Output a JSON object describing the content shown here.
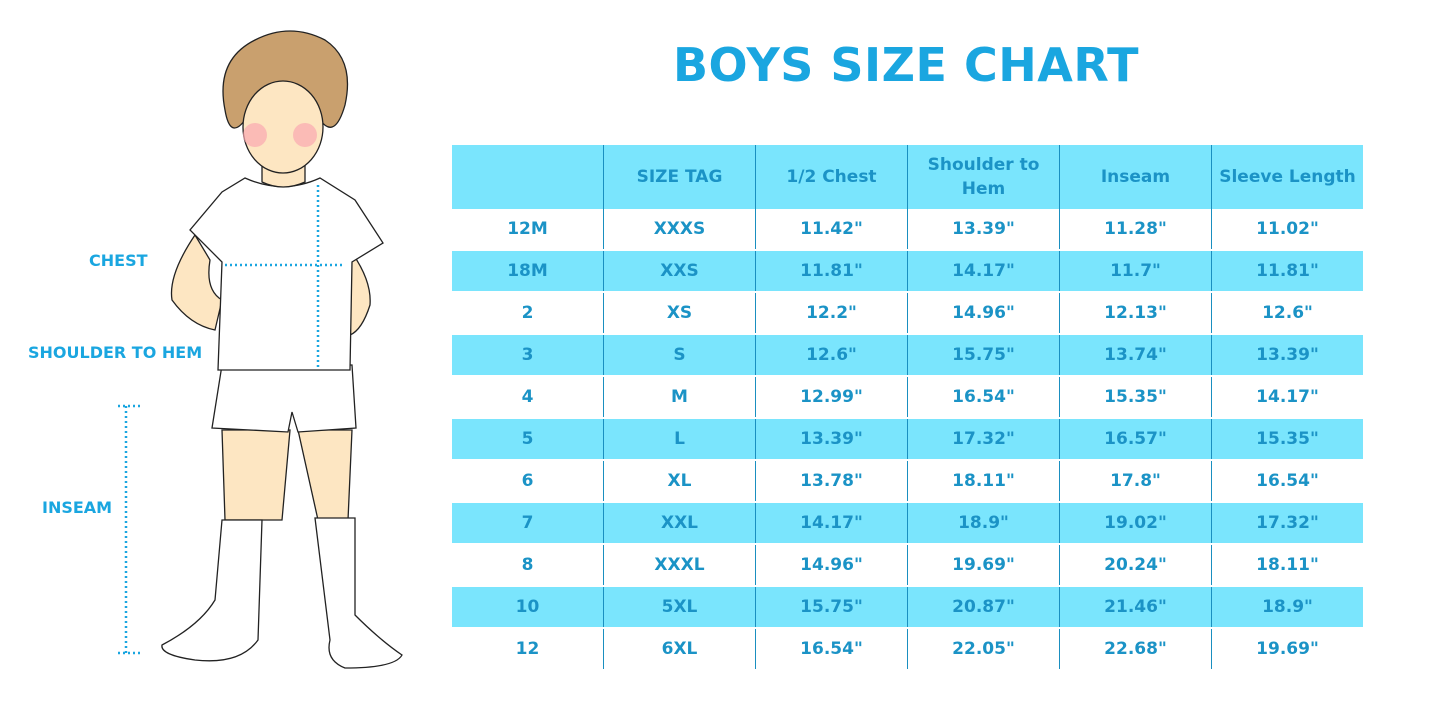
{
  "title": "BOYS SIZE CHART",
  "labels": {
    "chest": "CHEST",
    "shoulder_to_hem": "SHOULDER TO HEM",
    "inseam": "INSEAM"
  },
  "colors": {
    "accent": "#1aa6e0",
    "row_highlight": "#7ae5fd",
    "text": "#1b93c6",
    "divider": "#1a8fc0"
  },
  "table": {
    "headers": [
      "",
      "SIZE TAG",
      "1/2 Chest",
      "Shoulder to Hem",
      "Inseam",
      "Sleeve Length"
    ],
    "rows": [
      [
        "12M",
        "XXXS",
        "11.42\"",
        "13.39\"",
        "11.28\"",
        "11.02\""
      ],
      [
        "18M",
        "XXS",
        "11.81\"",
        "14.17\"",
        "11.7\"",
        "11.81\""
      ],
      [
        "2",
        "XS",
        "12.2\"",
        "14.96\"",
        "12.13\"",
        "12.6\""
      ],
      [
        "3",
        "S",
        "12.6\"",
        "15.75\"",
        "13.74\"",
        "13.39\""
      ],
      [
        "4",
        "M",
        "12.99\"",
        "16.54\"",
        "15.35\"",
        "14.17\""
      ],
      [
        "5",
        "L",
        "13.39\"",
        "17.32\"",
        "16.57\"",
        "15.35\""
      ],
      [
        "6",
        "XL",
        "13.78\"",
        "18.11\"",
        "17.8\"",
        "16.54\""
      ],
      [
        "7",
        "XXL",
        "14.17\"",
        "18.9\"",
        "19.02\"",
        "17.32\""
      ],
      [
        "8",
        "XXXL",
        "14.96\"",
        "19.69\"",
        "20.24\"",
        "18.11\""
      ],
      [
        "10",
        "5XL",
        "15.75\"",
        "20.87\"",
        "21.46\"",
        "18.9\""
      ],
      [
        "12",
        "6XL",
        "16.54\"",
        "22.05\"",
        "22.68\"",
        "19.69\""
      ]
    ]
  }
}
